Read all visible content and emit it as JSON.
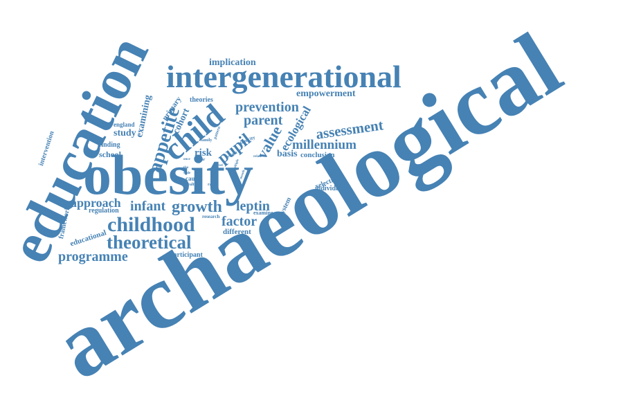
{
  "colors": {
    "word": "#4682b4",
    "background": "#ffffff"
  },
  "words": {
    "archaeological": "archaeological",
    "education": "education",
    "obesity": "obesity",
    "intergenerational": "intergenerational",
    "child": "child",
    "childhood": "childhood",
    "theoretical": "theoretical",
    "appetite": "appetite",
    "prevention": "prevention",
    "assessment": "assessment",
    "millennium": "millennium",
    "parent": "parent",
    "pupil": "pupil",
    "value": "value",
    "ecological": "ecological",
    "growth": "growth",
    "leptin": "leptin",
    "infant": "infant",
    "approach": "approach",
    "factor": "factor",
    "programme": "programme",
    "examining": "examining",
    "cohort": "cohort",
    "primary": "primary",
    "implication": "implication",
    "empowerment": "empowerment",
    "theories": "theories",
    "study": "study",
    "school": "school",
    "finding": "finding",
    "england": "england",
    "intervention": "intervention",
    "educational": "educational",
    "framework": "framework",
    "regulation": "regulation",
    "risk": "risk",
    "basis": "basis",
    "conclusion": "conclusion",
    "system": "system",
    "selection": "selection",
    "individual": "individual",
    "different": "different",
    "examine": "examine",
    "research": "research",
    "participant": "participant",
    "cause": "cause",
    "health": "health",
    "range": "range",
    "ethnicity": "ethnicity",
    "family": "family",
    "pattern": "pattern",
    "weight": "weight",
    "relate": "relate",
    "year": "year",
    "level": "level",
    "scale": "scale",
    "once": "once",
    "also": "also",
    "multiple": "multiple",
    "mouth": "mouth"
  }
}
